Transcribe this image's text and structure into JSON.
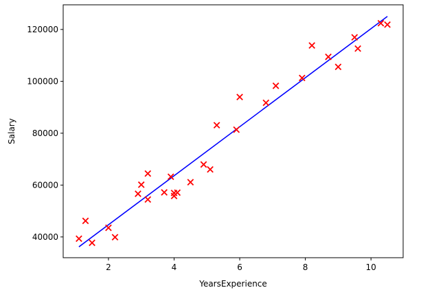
{
  "chart_data": {
    "type": "scatter",
    "title": "",
    "xlabel": "YearsExperience",
    "ylabel": "Salary",
    "xlim": [
      0.62,
      10.98
    ],
    "ylim": [
      32000,
      129500
    ],
    "xticks": [
      2,
      4,
      6,
      8,
      10
    ],
    "yticks": [
      40000,
      60000,
      80000,
      100000,
      120000
    ],
    "grid": false,
    "legend": "none",
    "colors": {
      "points": "#ff0000",
      "fit_line": "#0000ff",
      "axes": "#000000"
    },
    "series": [
      {
        "type": "scatter",
        "marker": "x",
        "x": [
          1.1,
          1.3,
          1.5,
          2.0,
          2.2,
          2.9,
          3.0,
          3.2,
          3.2,
          3.7,
          3.9,
          4.0,
          4.0,
          4.1,
          4.5,
          4.9,
          5.1,
          5.3,
          5.9,
          6.0,
          6.8,
          7.1,
          7.9,
          8.2,
          8.7,
          9.0,
          9.5,
          9.6,
          10.3,
          10.5
        ],
        "y": [
          39343,
          46205,
          37731,
          43525,
          39891,
          56642,
          60150,
          54445,
          64445,
          57189,
          63218,
          55794,
          56957,
          57081,
          61111,
          67938,
          66029,
          83088,
          81363,
          93940,
          91738,
          98273,
          101302,
          113812,
          109431,
          105582,
          116969,
          112635,
          122391,
          121872
        ]
      },
      {
        "type": "line",
        "x": [
          1.1,
          10.5
        ],
        "y": [
          36188,
          125025
        ]
      }
    ]
  }
}
